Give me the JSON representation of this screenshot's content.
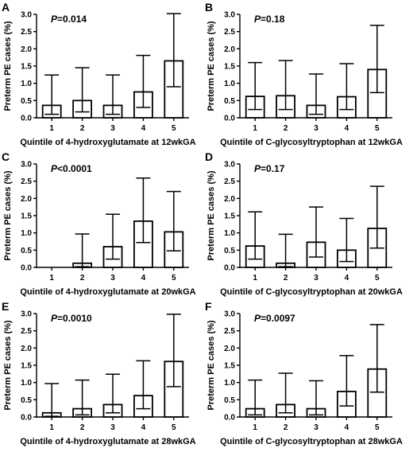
{
  "chart_data": [
    {
      "panel": "A",
      "type": "bar",
      "annotation": "P=0.014",
      "categories": [
        "1",
        "2",
        "3",
        "4",
        "5"
      ],
      "values": [
        0.36,
        0.5,
        0.36,
        0.75,
        1.65
      ],
      "error_low": [
        0.1,
        0.17,
        0.1,
        0.3,
        0.9
      ],
      "error_high": [
        1.24,
        1.45,
        1.24,
        1.81,
        3.02
      ],
      "xlabel": "Quintile of 4-hydroxyglutamate at 12wkGA",
      "ylabel": "Preterm PE cases (%)",
      "ylim": [
        0,
        3.0
      ],
      "yticks": [
        "0.0",
        "0.5",
        "1.0",
        "1.5",
        "2.0",
        "2.5",
        "3.0"
      ]
    },
    {
      "panel": "B",
      "type": "bar",
      "annotation": "P=0.18",
      "categories": [
        "1",
        "2",
        "3",
        "4",
        "5"
      ],
      "values": [
        0.62,
        0.64,
        0.36,
        0.61,
        1.4
      ],
      "error_low": [
        0.24,
        0.24,
        0.1,
        0.24,
        0.73
      ],
      "error_high": [
        1.6,
        1.66,
        1.27,
        1.57,
        2.68
      ],
      "xlabel": "Quintile of C-glycosyltryptophan at 12wkGA",
      "ylabel": "Preterm PE cases (%)",
      "ylim": [
        0,
        3.0
      ],
      "yticks": [
        "0.0",
        "0.5",
        "1.0",
        "1.5",
        "2.0",
        "2.5",
        "3.0"
      ]
    },
    {
      "panel": "C",
      "type": "bar",
      "annotation": "P<0.0001",
      "categories": [
        "1",
        "2",
        "3",
        "4",
        "5"
      ],
      "values": [
        0,
        0.12,
        0.6,
        1.34,
        1.03
      ],
      "error_low": [
        0,
        0.02,
        0.24,
        0.72,
        0.48
      ],
      "error_high": [
        0,
        0.97,
        1.54,
        2.59,
        2.2
      ],
      "xlabel": "Quintile of 4-hydroxyglutamate at 20wkGA",
      "ylabel": "Preterm PE cases (%)",
      "ylim": [
        0,
        3.0
      ],
      "yticks": [
        "0.0",
        "0.5",
        "1.0",
        "1.5",
        "2.0",
        "2.5",
        "3.0"
      ]
    },
    {
      "panel": "D",
      "type": "bar",
      "annotation": "P=0.17",
      "categories": [
        "1",
        "2",
        "3",
        "4",
        "5"
      ],
      "values": [
        0.62,
        0.12,
        0.73,
        0.5,
        1.13
      ],
      "error_low": [
        0.24,
        0.02,
        0.3,
        0.17,
        0.56
      ],
      "error_high": [
        1.61,
        0.96,
        1.75,
        1.42,
        2.35
      ],
      "xlabel": "Quintile of C-glycosyltryptophan at 20wkGA",
      "ylabel": "Preterm PE cases (%)",
      "ylim": [
        0,
        3.0
      ],
      "yticks": [
        "0.0",
        "0.5",
        "1.0",
        "1.5",
        "2.0",
        "2.5",
        "3.0"
      ]
    },
    {
      "panel": "E",
      "type": "bar",
      "annotation": "P=0.0010",
      "categories": [
        "1",
        "2",
        "3",
        "4",
        "5"
      ],
      "values": [
        0.12,
        0.24,
        0.36,
        0.62,
        1.61
      ],
      "error_low": [
        0.02,
        0.06,
        0.12,
        0.24,
        0.88
      ],
      "error_high": [
        0.97,
        1.07,
        1.24,
        1.63,
        2.98
      ],
      "xlabel": "Quintile of 4-hydroxyglutamate at 28wkGA",
      "ylabel": "Preterm PE cases (%)",
      "ylim": [
        0,
        3.0
      ],
      "yticks": [
        "0.0",
        "0.5",
        "1.0",
        "1.5",
        "2.0",
        "2.5",
        "3.0"
      ]
    },
    {
      "panel": "F",
      "type": "bar",
      "annotation": "P=0.0097",
      "categories": [
        "1",
        "2",
        "3",
        "4",
        "5"
      ],
      "values": [
        0.24,
        0.36,
        0.24,
        0.74,
        1.39
      ],
      "error_low": [
        0.06,
        0.12,
        0.06,
        0.32,
        0.72
      ],
      "error_high": [
        1.07,
        1.27,
        1.05,
        1.78,
        2.68
      ],
      "xlabel": "Quintile of C-glycosyltryptophan at 28wkGA",
      "ylabel": "Preterm PE cases (%)",
      "ylim": [
        0,
        3.0
      ],
      "yticks": [
        "0.0",
        "0.5",
        "1.0",
        "1.5",
        "2.0",
        "2.5",
        "3.0"
      ]
    }
  ]
}
